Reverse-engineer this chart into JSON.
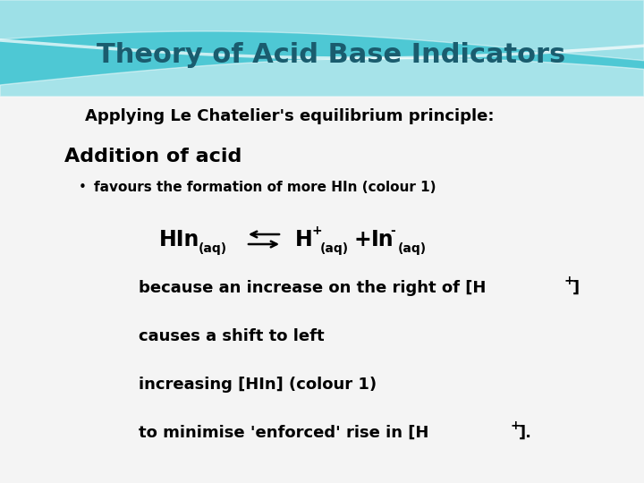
{
  "title": "Theory of Acid Base Indicators",
  "title_color": "#1a5c6e",
  "title_fontsize": 22,
  "bg_top_color": "#4ec8d4",
  "bg_white": "#f5f5f5",
  "subtitle": "Applying Le Chatelier's equilibrium principle:",
  "subtitle_fontsize": 13,
  "heading": "Addition of acid",
  "heading_fontsize": 16,
  "bullet": "favours the formation of more HIn (colour 1)",
  "bullet_fontsize": 11,
  "line1a": "because an increase on the right of [H",
  "line1b": "+",
  "line1c": "]",
  "line_fontsize": 13,
  "line2": "causes a shift to left",
  "line3": "increasing [HIn] (colour 1)",
  "line4a": "to minimise 'enforced' rise in [H",
  "line4b": "+",
  "line4c": "].",
  "text_color": "#000000",
  "figwidth": 7.2,
  "figheight": 5.4,
  "dpi": 100
}
